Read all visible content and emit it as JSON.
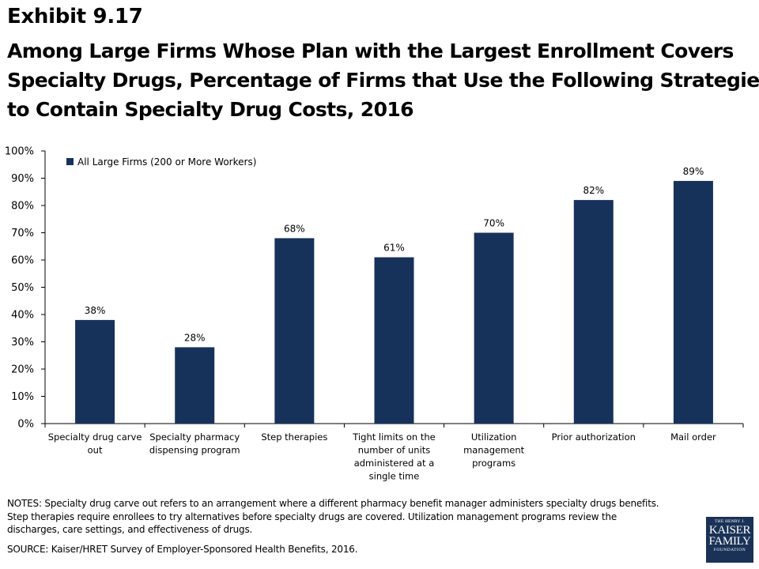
{
  "header": {
    "exhibit": "Exhibit 9.17",
    "title_lines": [
      "Among Large Firms Whose Plan with the Largest Enrollment Covers",
      "Specialty Drugs, Percentage of Firms that Use the Following Strategies",
      "to Contain Specialty Drug Costs, 2016"
    ]
  },
  "chart_data": {
    "type": "bar",
    "categories": [
      [
        "Specialty drug carve",
        "out"
      ],
      [
        "Specialty pharmacy",
        "dispensing program"
      ],
      [
        "Step therapies"
      ],
      [
        "Tight limits on the",
        "number of units",
        "administered at a",
        "single time"
      ],
      [
        "Utilization",
        "management",
        "programs"
      ],
      [
        "Prior authorization"
      ],
      [
        "Mail order"
      ]
    ],
    "series": [
      {
        "name": "All Large Firms (200 or More Workers)",
        "values": [
          38,
          28,
          68,
          61,
          70,
          82,
          89
        ],
        "labels": [
          "38%",
          "28%",
          "68%",
          "61%",
          "70%",
          "82%",
          "89%"
        ],
        "color": "#17325a"
      }
    ],
    "ylim": [
      0,
      100
    ],
    "yticks": [
      0,
      10,
      20,
      30,
      40,
      50,
      60,
      70,
      80,
      90,
      100
    ],
    "ytick_labels": [
      "0%",
      "10%",
      "20%",
      "30%",
      "40%",
      "50%",
      "60%",
      "70%",
      "80%",
      "90%",
      "100%"
    ],
    "legend_position": "top-left",
    "grid": false
  },
  "notes": {
    "lines": [
      "NOTES:  Specialty drug carve out refers to an arrangement where a different pharmacy benefit manager administers specialty drugs benefits.",
      "Step therapies require enrollees to try alternatives before specialty drugs are covered. Utilization management programs review the",
      "discharges, care settings, and effectiveness of drugs."
    ],
    "source": "SOURCE:  Kaiser/HRET Survey of Employer-Sponsored Health Benefits, 2016."
  },
  "logo": {
    "line1": "THE HENRY J.",
    "line2": "KAISER",
    "line3": "FAMILY",
    "line4": "FOUNDATION",
    "background": "#1a3257"
  }
}
